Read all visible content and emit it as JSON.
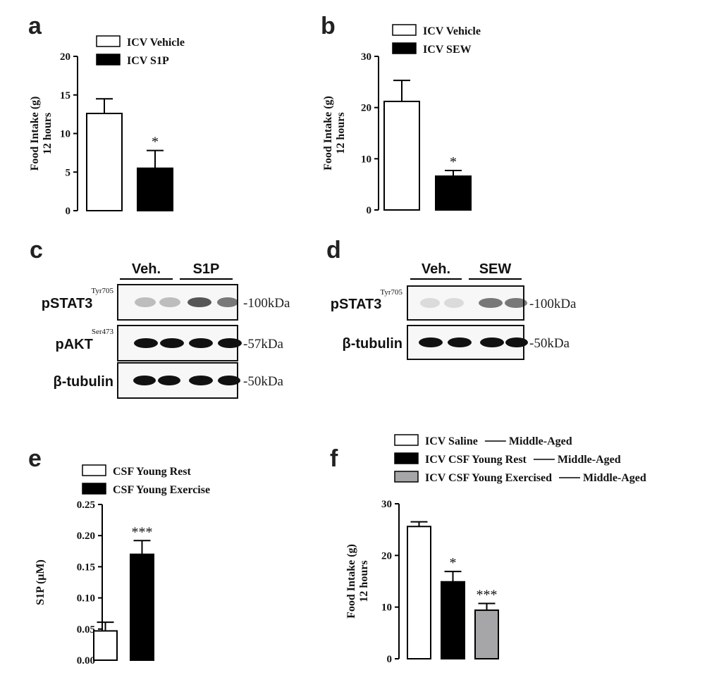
{
  "panels": {
    "a": {
      "label": "a"
    },
    "b": {
      "label": "b"
    },
    "c": {
      "label": "c",
      "groups": [
        "Veh.",
        "S1P"
      ],
      "rows": [
        {
          "name": "pSTAT3",
          "sup": "Tyr705",
          "mw": "-100kDa"
        },
        {
          "name": "pAKT",
          "sup": "Ser473",
          "mw": "-57kDa"
        },
        {
          "name": "β-tubulin",
          "sup": "",
          "mw": "-50kDa"
        }
      ]
    },
    "d": {
      "label": "d",
      "groups": [
        "Veh.",
        "SEW"
      ],
      "rows": [
        {
          "name": "pSTAT3",
          "sup": "Tyr705",
          "mw": "-100kDa"
        },
        {
          "name": "β-tubulin",
          "sup": "",
          "mw": "-50kDa"
        }
      ]
    },
    "e": {
      "label": "e"
    },
    "f": {
      "label": "f"
    }
  },
  "colors": {
    "white": "#ffffff",
    "black": "#000000",
    "gray": "#a6a6a8"
  },
  "chart_data": [
    {
      "id": "a",
      "type": "bar",
      "categories": [
        "ICV Vehicle",
        "ICV S1P"
      ],
      "values": [
        12.6,
        5.5
      ],
      "errors": [
        1.9,
        2.3
      ],
      "colors": [
        "white",
        "black"
      ],
      "significance": [
        "",
        "*"
      ],
      "ylabel": "Food Intake (g)",
      "ylabel2": "12 hours",
      "ylim": [
        0,
        20
      ],
      "yticks": [
        "0",
        "5",
        "10",
        "15",
        "20"
      ],
      "legend": [
        {
          "label": "ICV Vehicle",
          "color": "white"
        },
        {
          "label": "ICV S1P",
          "color": "black"
        }
      ]
    },
    {
      "id": "b",
      "type": "bar",
      "categories": [
        "ICV Vehicle",
        "ICV SEW"
      ],
      "values": [
        21.2,
        6.6
      ],
      "errors": [
        4.1,
        1.1
      ],
      "colors": [
        "white",
        "black"
      ],
      "significance": [
        "",
        "*"
      ],
      "ylabel": "Food Intake (g)",
      "ylabel2": "12 hours",
      "ylim": [
        0,
        30
      ],
      "yticks": [
        "0",
        "10",
        "20",
        "30"
      ],
      "legend": [
        {
          "label": "ICV Vehicle",
          "color": "white"
        },
        {
          "label": "ICV SEW",
          "color": "black"
        }
      ]
    },
    {
      "id": "e",
      "type": "bar",
      "categories": [
        "CSF Young Rest",
        "CSF Young Exercise"
      ],
      "values": [
        0.047,
        0.17
      ],
      "errors": [
        0.014,
        0.022
      ],
      "colors": [
        "white",
        "black"
      ],
      "significance": [
        "",
        "***"
      ],
      "ylabel": "S1P (μM)",
      "ylabel2": "",
      "ylim": [
        0,
        0.25
      ],
      "yticks": [
        "0.00",
        "0.05",
        "0.10",
        "0.15",
        "0.20",
        "0.25"
      ],
      "legend": [
        {
          "label": "CSF Young Rest",
          "color": "white"
        },
        {
          "label": "CSF Young Exercise",
          "color": "black"
        }
      ]
    },
    {
      "id": "f",
      "type": "bar",
      "categories": [
        "ICV Saline — Middle-Aged",
        "ICV CSF Young Rest — Middle-Aged",
        "ICV CSF Young Exercised — Middle-Aged"
      ],
      "values": [
        25.6,
        14.9,
        9.4
      ],
      "errors": [
        0.9,
        2.0,
        1.3
      ],
      "colors": [
        "white",
        "black",
        "gray"
      ],
      "significance": [
        "",
        "*",
        "***"
      ],
      "ylabel": "Food Intake (g)",
      "ylabel2": "12 hours",
      "ylim": [
        0,
        30
      ],
      "yticks": [
        "0",
        "10",
        "20",
        "30"
      ],
      "legend": [
        {
          "label": "ICV Saline",
          "suffix": "Middle-Aged",
          "color": "white"
        },
        {
          "label": "ICV CSF Young Rest",
          "suffix": "Middle-Aged",
          "color": "black"
        },
        {
          "label": "ICV CSF Young Exercised",
          "suffix": "Middle-Aged",
          "color": "gray"
        }
      ]
    }
  ]
}
